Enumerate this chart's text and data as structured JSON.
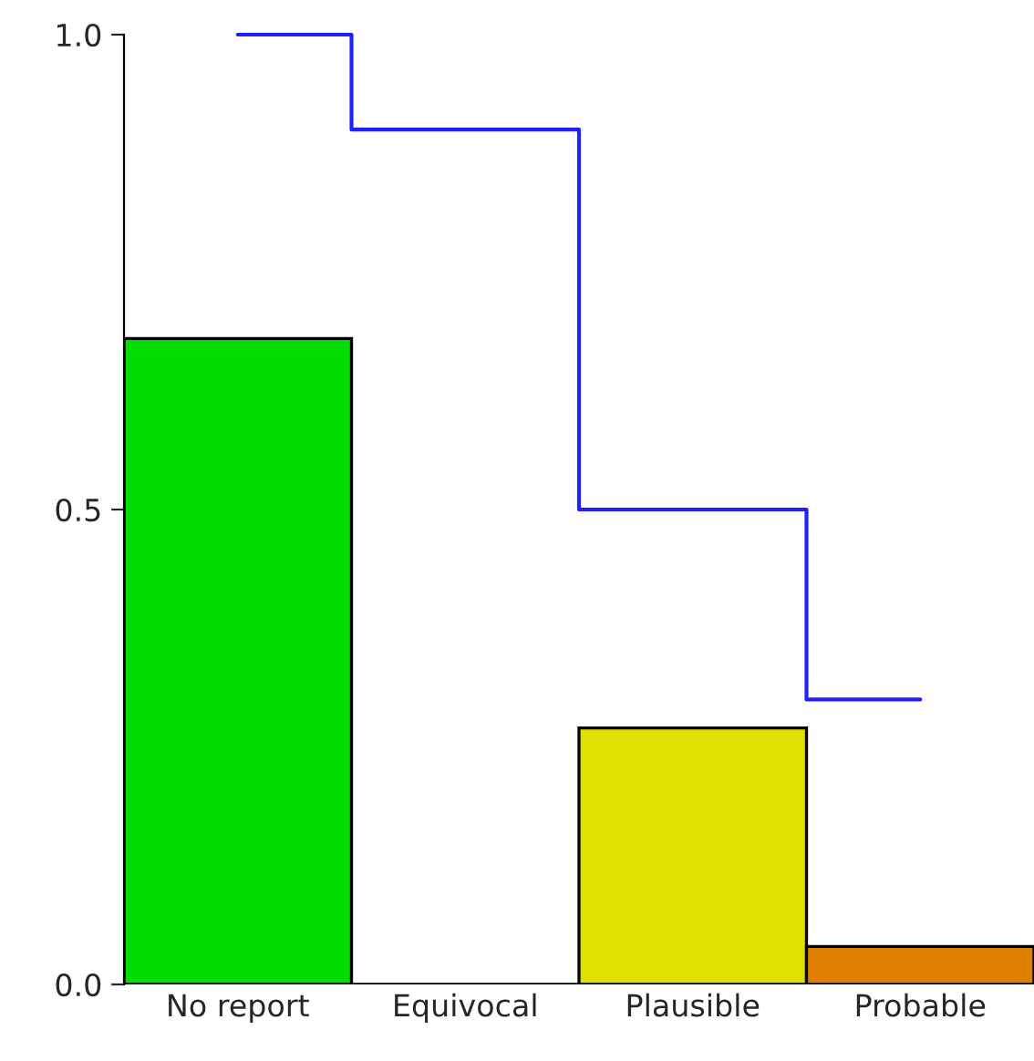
{
  "chart_data": {
    "type": "bar",
    "categories": [
      "No report",
      "Equivocal",
      "Plausible",
      "Probable"
    ],
    "series": [
      {
        "values": [
          0.68,
          0,
          0.27,
          0.04
        ],
        "colors": [
          "#00dd00",
          "#00dd00",
          "#e0e000",
          "#e08000"
        ]
      },
      {
        "type": "step",
        "color": "#2020ff",
        "values": [
          1.0,
          0.9,
          0.5,
          0.3
        ]
      }
    ],
    "ylim": [
      0,
      1
    ],
    "yticks": [
      {
        "value": 0,
        "label": "0.0"
      },
      0.5,
      {
        "value": 1,
        "label": "1.0"
      }
    ],
    "grid": false,
    "legend": false
  }
}
